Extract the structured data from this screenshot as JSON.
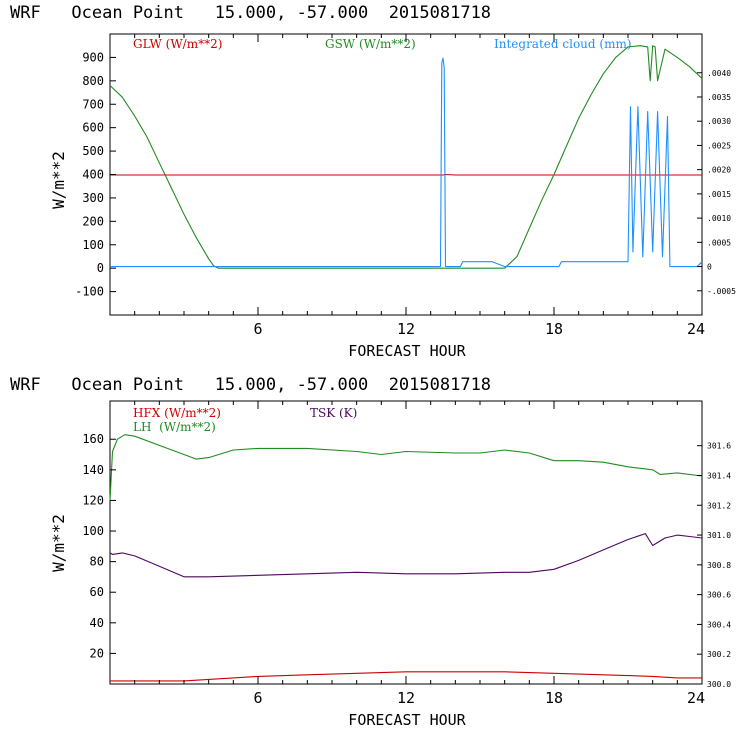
{
  "chart_data": [
    {
      "type": "line",
      "title": "WRF   Ocean Point   15.000, -57.000  2015081718",
      "xlabel": "FORECAST HOUR",
      "ylabel": "W/m**2",
      "xlim": [
        0,
        24
      ],
      "ylim": [
        -200,
        1000
      ],
      "x_ticks": [
        6,
        12,
        18,
        24
      ],
      "y_ticks": [
        -100,
        0,
        100,
        200,
        300,
        400,
        500,
        600,
        700,
        800,
        900
      ],
      "y_tick_labels": [
        "-100",
        "0",
        "100",
        "200",
        "300",
        "400",
        "500",
        "600",
        "700",
        "800",
        "900"
      ],
      "right_axis": {
        "label_for": "Integrated cloud (mm)",
        "ylim": [
          -0.001,
          0.0048
        ],
        "ticks": [
          -0.0005,
          0,
          0.0005,
          0.001,
          0.0015,
          0.002,
          0.0025,
          0.003,
          0.0035,
          0.004
        ],
        "tick_labels": [
          "-.0005",
          "0",
          ".0005",
          ".0010",
          ".0015",
          ".0020",
          ".0025",
          ".0030",
          ".0035",
          ".0040"
        ]
      },
      "legend": [
        {
          "label": "GLW (W/m**2)",
          "color": "#cc0000"
        },
        {
          "label": "GSW (W/m**2)",
          "color": "#228b22"
        },
        {
          "label": "Integrated cloud (mm)",
          "color": "#1e90ff"
        }
      ],
      "series": [
        {
          "name": "GLW",
          "axis": "left",
          "color": "#cc0000",
          "x": [
            0,
            13.5,
            13.6,
            14,
            24
          ],
          "y": [
            398,
            398,
            400,
            398,
            398
          ]
        },
        {
          "name": "GSW",
          "axis": "left",
          "color": "#228b22",
          "x": [
            0,
            0.5,
            1,
            1.5,
            2,
            2.5,
            3,
            3.5,
            4,
            4.2,
            4.4,
            16,
            16.5,
            17,
            17.5,
            18,
            18.5,
            19,
            19.5,
            20,
            20.5,
            21,
            21.5,
            21.8,
            21.9,
            22.0,
            22.1,
            22.2,
            22.5,
            23,
            23.5,
            24
          ],
          "y": [
            780,
            730,
            650,
            560,
            450,
            340,
            230,
            130,
            40,
            10,
            0,
            0,
            50,
            170,
            290,
            400,
            520,
            640,
            740,
            830,
            900,
            945,
            950,
            945,
            800,
            950,
            945,
            800,
            935,
            900,
            860,
            810
          ]
        },
        {
          "name": "Integrated cloud",
          "axis": "right",
          "color": "#1e90ff",
          "x": [
            0,
            13.4,
            13.45,
            13.5,
            13.55,
            13.6,
            14.2,
            14.3,
            15.5,
            16,
            18.2,
            18.3,
            21,
            21.1,
            21.2,
            21.4,
            21.6,
            21.8,
            22.0,
            22.2,
            22.4,
            22.6,
            22.7,
            23.8,
            24
          ],
          "y": [
            0,
            0,
            0.0042,
            0.0043,
            0.0041,
            0,
            0,
            0.0001,
            0.0001,
            0,
            0,
            0.0001,
            0.0001,
            0.0033,
            0.0003,
            0.0033,
            0.0002,
            0.0032,
            0.0003,
            0.0032,
            0.0002,
            0.0031,
            0,
            0,
            0.0001
          ]
        }
      ]
    },
    {
      "type": "line",
      "title": "WRF   Ocean Point   15.000, -57.000  2015081718",
      "xlabel": "FORECAST HOUR",
      "ylabel": "W/m**2",
      "xlim": [
        0,
        24
      ],
      "ylim": [
        0,
        185
      ],
      "x_ticks": [
        6,
        12,
        18,
        24
      ],
      "y_ticks": [
        20,
        40,
        60,
        80,
        100,
        120,
        140,
        160
      ],
      "y_tick_labels": [
        "20",
        "40",
        "60",
        "80",
        "100",
        "120",
        "140",
        "160"
      ],
      "right_axis": {
        "label_for": "TSK (K)",
        "ylim": [
          300.0,
          301.9
        ],
        "ticks": [
          300.0,
          300.2,
          300.4,
          300.6,
          300.8,
          301.0,
          301.2,
          301.4,
          301.6
        ],
        "tick_labels": [
          "300.0",
          "300.2",
          "300.4",
          "300.6",
          "300.8",
          "301.0",
          "301.2",
          "301.4",
          "301.6"
        ]
      },
      "legend": [
        {
          "label": "HFX (W/m**2)",
          "color": "#cc0000"
        },
        {
          "label": "LH  (W/m**2)",
          "color": "#228b22"
        },
        {
          "label": "TSK (K)",
          "color": "#4b0a5a"
        }
      ],
      "series": [
        {
          "name": "HFX",
          "axis": "left",
          "color": "#cc0000",
          "x": [
            0,
            1,
            2,
            3,
            4,
            5,
            6,
            8,
            10,
            12,
            14,
            16,
            18,
            20,
            22,
            23,
            24
          ],
          "y": [
            2,
            2,
            2,
            2,
            3,
            4,
            5,
            6,
            7,
            8,
            8,
            8,
            7,
            6,
            5,
            4,
            4
          ]
        },
        {
          "name": "LH",
          "axis": "left",
          "color": "#228b22",
          "x": [
            0,
            0.1,
            0.3,
            0.6,
            1,
            2,
            3,
            3.5,
            4,
            5,
            6,
            8,
            10,
            11,
            12,
            14,
            15,
            16,
            17,
            18,
            19,
            20,
            21,
            22,
            22.3,
            23,
            24
          ],
          "y": [
            120,
            152,
            160,
            163,
            162,
            156,
            150,
            147,
            148,
            153,
            154,
            154,
            152,
            150,
            152,
            151,
            151,
            153,
            151,
            146,
            146,
            145,
            142,
            140,
            137,
            138,
            136
          ]
        },
        {
          "name": "TSK",
          "axis": "right",
          "color": "#4b0a5a",
          "x": [
            0,
            0.1,
            0.5,
            1,
            2,
            3,
            4,
            6,
            8,
            10,
            12,
            14,
            16,
            17,
            18,
            19,
            20,
            21,
            21.7,
            22,
            22.5,
            23,
            23.5,
            24
          ],
          "y": [
            300.88,
            300.87,
            300.88,
            300.86,
            300.79,
            300.72,
            300.72,
            300.73,
            300.74,
            300.75,
            300.74,
            300.74,
            300.75,
            300.75,
            300.77,
            300.83,
            300.9,
            300.97,
            301.01,
            300.93,
            300.98,
            301.0,
            300.99,
            300.98
          ]
        }
      ]
    }
  ]
}
